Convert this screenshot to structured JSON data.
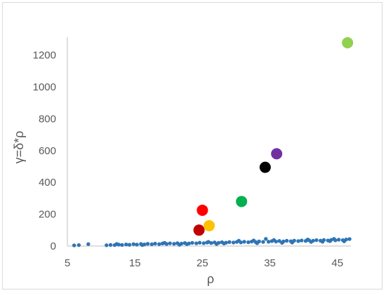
{
  "chart_data": {
    "type": "scatter",
    "title": "",
    "xlabel": "ρ",
    "ylabel": "γ=δ*ρ",
    "xlim": [
      5,
      47
    ],
    "ylim": [
      0,
      1300
    ],
    "x_ticks": [
      "5",
      "15",
      "25",
      "35",
      "45"
    ],
    "y_ticks": [
      "0",
      "200",
      "400",
      "600",
      "800",
      "1000",
      "1200"
    ],
    "grid": false,
    "legend": "none",
    "base_series": {
      "color": "#2E75B6",
      "points": [
        [
          6.0,
          4
        ],
        [
          6.7,
          6
        ],
        [
          8.1,
          12
        ],
        [
          10.8,
          5
        ],
        [
          11.4,
          7
        ],
        [
          12.0,
          6
        ],
        [
          12.6,
          9
        ],
        [
          13.1,
          7
        ],
        [
          13.7,
          10
        ],
        [
          14.2,
          8
        ],
        [
          14.8,
          12
        ],
        [
          15.3,
          9
        ],
        [
          15.9,
          13
        ],
        [
          16.4,
          10
        ],
        [
          16.9,
          14
        ],
        [
          17.5,
          11
        ],
        [
          18.0,
          15
        ],
        [
          18.6,
          12
        ],
        [
          19.1,
          16
        ],
        [
          19.7,
          13
        ],
        [
          20.2,
          17
        ],
        [
          20.8,
          14
        ],
        [
          21.3,
          18
        ],
        [
          21.9,
          15
        ],
        [
          22.4,
          19
        ],
        [
          23.0,
          16
        ],
        [
          23.5,
          20
        ],
        [
          24.1,
          17
        ],
        [
          24.6,
          21
        ],
        [
          25.2,
          18
        ],
        [
          25.7,
          22
        ],
        [
          26.3,
          19
        ],
        [
          26.8,
          23
        ],
        [
          27.4,
          20
        ],
        [
          27.9,
          24
        ],
        [
          28.5,
          21
        ],
        [
          29.0,
          25
        ],
        [
          29.6,
          22
        ],
        [
          30.1,
          26
        ],
        [
          30.7,
          23
        ],
        [
          31.2,
          27
        ],
        [
          31.8,
          24
        ],
        [
          32.3,
          28
        ],
        [
          32.9,
          25
        ],
        [
          33.4,
          29
        ],
        [
          34.0,
          26
        ],
        [
          34.4,
          45
        ],
        [
          34.8,
          27
        ],
        [
          35.3,
          31
        ],
        [
          35.9,
          28
        ],
        [
          36.4,
          32
        ],
        [
          37.0,
          29
        ],
        [
          37.5,
          33
        ],
        [
          38.1,
          30
        ],
        [
          38.6,
          34
        ],
        [
          39.2,
          31
        ],
        [
          39.7,
          35
        ],
        [
          40.3,
          32
        ],
        [
          40.8,
          36
        ],
        [
          41.4,
          33
        ],
        [
          41.9,
          37
        ],
        [
          42.5,
          34
        ],
        [
          43.0,
          38
        ],
        [
          43.6,
          35
        ],
        [
          44.1,
          39
        ],
        [
          44.7,
          36
        ],
        [
          45.2,
          40
        ],
        [
          45.8,
          37
        ],
        [
          46.3,
          41
        ],
        [
          46.8,
          44
        ],
        [
          12.3,
          13
        ],
        [
          16.1,
          6
        ],
        [
          19.4,
          20
        ],
        [
          22.7,
          12
        ],
        [
          25.9,
          26
        ],
        [
          28.2,
          16
        ],
        [
          30.4,
          33
        ],
        [
          33.1,
          18
        ],
        [
          35.6,
          38
        ],
        [
          38.3,
          22
        ],
        [
          40.6,
          41
        ],
        [
          42.8,
          27
        ],
        [
          44.5,
          45
        ],
        [
          46.0,
          30
        ],
        [
          21.6,
          8
        ],
        [
          27.1,
          13
        ],
        [
          32.6,
          35
        ],
        [
          36.8,
          20
        ],
        [
          41.1,
          26
        ],
        [
          43.9,
          31
        ]
      ]
    },
    "highlight_points": [
      {
        "x": 24.5,
        "y": 100,
        "color": "#C00000"
      },
      {
        "x": 25.0,
        "y": 225,
        "color": "#FF0000"
      },
      {
        "x": 26.0,
        "y": 128,
        "color": "#FFC000"
      },
      {
        "x": 30.8,
        "y": 280,
        "color": "#00B050"
      },
      {
        "x": 34.3,
        "y": 495,
        "color": "#000000"
      },
      {
        "x": 36.0,
        "y": 580,
        "color": "#7030A0"
      },
      {
        "x": 46.5,
        "y": 1278,
        "color": "#92D050"
      }
    ],
    "axis_color": "#bfbfbf",
    "text_color": "#595959"
  }
}
